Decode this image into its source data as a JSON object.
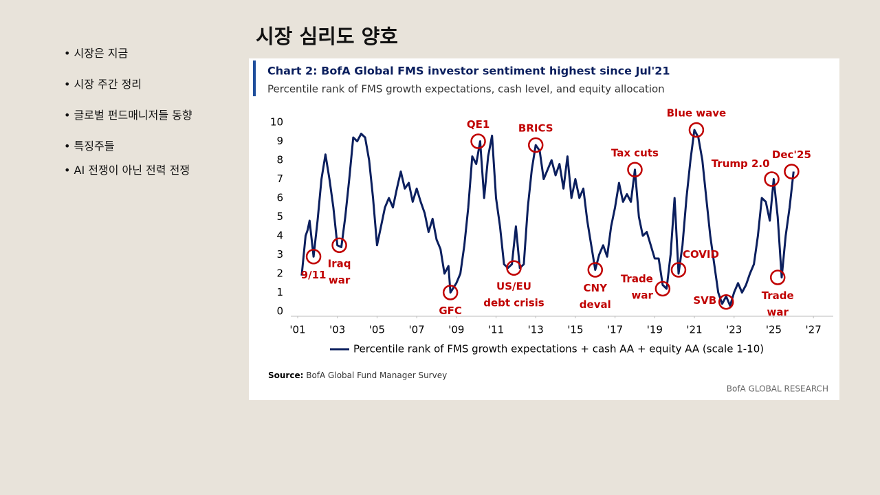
{
  "slide": {
    "title": "시장 심리도 양호",
    "bullets": [
      "시장은 지금",
      "시장 주간 정리",
      "글로벌 펀드매니저들 동향",
      "특징주들",
      "AI 전쟁이 아닌 전력 전쟁"
    ]
  },
  "chart_data": {
    "type": "line",
    "title": "Chart 2: BofA Global FMS investor sentiment highest since Jul'21",
    "subtitle": "Percentile rank of FMS growth expectations, cash level, and equity allocation",
    "source_label": "Source:",
    "source": "BofA Global Fund Manager Survey",
    "brand": "BofA GLOBAL RESEARCH",
    "x": [
      2001.2,
      2001.4,
      2001.5,
      2001.6,
      2001.8,
      2002.0,
      2002.2,
      2002.4,
      2002.6,
      2002.8,
      2003.0,
      2003.2,
      2003.4,
      2003.6,
      2003.8,
      2004.0,
      2004.2,
      2004.4,
      2004.6,
      2004.8,
      2005.0,
      2005.2,
      2005.4,
      2005.6,
      2005.8,
      2006.0,
      2006.2,
      2006.4,
      2006.6,
      2006.8,
      2007.0,
      2007.2,
      2007.4,
      2007.6,
      2007.8,
      2008.0,
      2008.2,
      2008.4,
      2008.6,
      2008.7,
      2009.0,
      2009.2,
      2009.4,
      2009.6,
      2009.8,
      2010.0,
      2010.2,
      2010.4,
      2010.6,
      2010.8,
      2011.0,
      2011.2,
      2011.4,
      2011.6,
      2011.8,
      2012.0,
      2012.2,
      2012.4,
      2012.6,
      2012.8,
      2013.0,
      2013.2,
      2013.4,
      2013.6,
      2013.8,
      2014.0,
      2014.2,
      2014.4,
      2014.6,
      2014.8,
      2015.0,
      2015.2,
      2015.4,
      2015.6,
      2015.8,
      2016.0,
      2016.2,
      2016.4,
      2016.6,
      2016.8,
      2017.0,
      2017.2,
      2017.4,
      2017.6,
      2017.8,
      2018.0,
      2018.2,
      2018.4,
      2018.6,
      2018.8,
      2019.0,
      2019.2,
      2019.4,
      2019.6,
      2019.8,
      2020.0,
      2020.2,
      2020.4,
      2020.6,
      2020.8,
      2021.0,
      2021.2,
      2021.4,
      2021.6,
      2021.8,
      2022.0,
      2022.2,
      2022.4,
      2022.6,
      2022.8,
      2023.0,
      2023.2,
      2023.4,
      2023.6,
      2023.8,
      2024.0,
      2024.2,
      2024.4,
      2024.6,
      2024.8,
      2025.0,
      2025.2,
      2025.4,
      2025.6,
      2025.8,
      2026.0
    ],
    "series": [
      {
        "name": "Percentile rank of FMS growth expectations + cash AA + equity AA (scale 1-10)",
        "color": "#0b1f5e",
        "values": [
          1.9,
          4.0,
          4.3,
          4.8,
          2.9,
          4.8,
          7.0,
          8.3,
          7.0,
          5.5,
          3.5,
          3.4,
          5.0,
          7.0,
          9.2,
          9.0,
          9.4,
          9.2,
          8.0,
          6.0,
          3.5,
          4.5,
          5.5,
          6.0,
          5.5,
          6.5,
          7.4,
          6.5,
          6.8,
          5.8,
          6.5,
          5.8,
          5.2,
          4.2,
          4.9,
          3.8,
          3.3,
          2.0,
          2.4,
          1.0,
          1.5,
          2.0,
          3.5,
          5.5,
          8.2,
          7.8,
          9.0,
          6.0,
          8.2,
          9.3,
          6.0,
          4.5,
          2.5,
          2.3,
          2.5,
          4.5,
          2.3,
          2.5,
          5.5,
          7.5,
          8.8,
          8.5,
          7.0,
          7.5,
          8.0,
          7.2,
          7.8,
          6.5,
          8.2,
          6.0,
          7.0,
          6.0,
          6.5,
          4.8,
          3.5,
          2.2,
          3.0,
          3.5,
          2.9,
          4.5,
          5.5,
          6.8,
          5.8,
          6.2,
          5.8,
          7.5,
          5.0,
          4.0,
          4.2,
          3.5,
          2.8,
          2.8,
          1.4,
          1.2,
          3.0,
          6.0,
          2.0,
          3.5,
          6.0,
          8.0,
          9.6,
          9.2,
          8.0,
          6.0,
          4.0,
          2.5,
          1.0,
          0.4,
          0.8,
          0.3,
          1.0,
          1.5,
          1.0,
          1.4,
          2.0,
          2.5,
          4.0,
          6.0,
          5.8,
          4.8,
          7.0,
          5.0,
          1.8,
          4.0,
          5.5,
          7.4
        ]
      }
    ],
    "xlim": [
      2001,
      2028
    ],
    "ylim": [
      0,
      10
    ],
    "xticks": [
      {
        "value": 2001,
        "label": "'01"
      },
      {
        "value": 2003,
        "label": "'03"
      },
      {
        "value": 2005,
        "label": "'05"
      },
      {
        "value": 2007,
        "label": "'07"
      },
      {
        "value": 2009,
        "label": "'09"
      },
      {
        "value": 2011,
        "label": "'11"
      },
      {
        "value": 2013,
        "label": "'13"
      },
      {
        "value": 2015,
        "label": "'15"
      },
      {
        "value": 2017,
        "label": "'17"
      },
      {
        "value": 2019,
        "label": "'19"
      },
      {
        "value": 2021,
        "label": "'21"
      },
      {
        "value": 2023,
        "label": "'23"
      },
      {
        "value": 2025,
        "label": "'25"
      },
      {
        "value": 2027,
        "label": "'27"
      }
    ],
    "yticks": [
      0,
      1,
      2,
      3,
      4,
      5,
      6,
      7,
      8,
      9,
      10
    ],
    "grid": false,
    "annotation_color": "#c00000",
    "annotations": [
      {
        "lines": [
          "9/11"
        ],
        "x": 2001.8,
        "y": 2.9,
        "position": "below"
      },
      {
        "lines": [
          "Iraq",
          "war"
        ],
        "x": 2003.1,
        "y": 3.5,
        "position": "below"
      },
      {
        "lines": [
          "GFC"
        ],
        "x": 2008.7,
        "y": 1.0,
        "position": "below"
      },
      {
        "lines": [
          "QE1"
        ],
        "x": 2010.1,
        "y": 9.0,
        "position": "above"
      },
      {
        "lines": [
          "BRICS"
        ],
        "x": 2013.0,
        "y": 8.8,
        "position": "above"
      },
      {
        "lines": [
          "US/EU",
          "debt crisis"
        ],
        "x": 2011.9,
        "y": 2.3,
        "position": "below"
      },
      {
        "lines": [
          "CNY",
          "deval"
        ],
        "x": 2016.0,
        "y": 2.2,
        "position": "below"
      },
      {
        "lines": [
          "Tax cuts"
        ],
        "x": 2018.0,
        "y": 7.5,
        "position": "above"
      },
      {
        "lines": [
          "Trade",
          "war"
        ],
        "x": 2019.4,
        "y": 1.2,
        "position": "left"
      },
      {
        "lines": [
          "COVID"
        ],
        "x": 2020.2,
        "y": 2.2,
        "position": "right"
      },
      {
        "lines": [
          "Blue wave"
        ],
        "x": 2021.1,
        "y": 9.6,
        "position": "above"
      },
      {
        "lines": [
          "SVB"
        ],
        "x": 2022.6,
        "y": 0.5,
        "position": "left"
      },
      {
        "lines": [
          "Trump 2.0"
        ],
        "x": 2024.9,
        "y": 7.0,
        "position": "above-left"
      },
      {
        "lines": [
          "Trade",
          "war"
        ],
        "x": 2025.2,
        "y": 1.8,
        "position": "below"
      },
      {
        "lines": [
          "Dec'25"
        ],
        "x": 2025.9,
        "y": 7.4,
        "position": "above"
      }
    ]
  }
}
